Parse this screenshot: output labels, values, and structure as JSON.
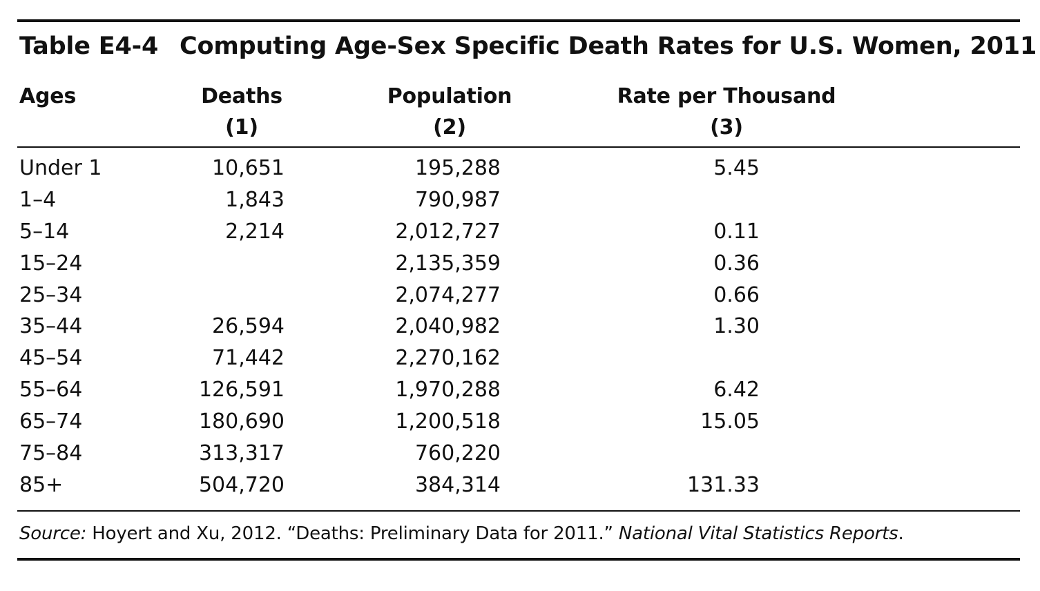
{
  "table": {
    "label": "Table E4-4",
    "title": "Computing Age-Sex Specific Death Rates for U.S. Women, 2011",
    "columns": {
      "ages": "Ages",
      "deaths": "Deaths",
      "deaths_num": "(1)",
      "population": "Population",
      "population_num": "(2)",
      "rate": "Rate per Thousand",
      "rate_num": "(3)"
    },
    "rows": [
      {
        "age": "Under 1",
        "deaths": "10,651",
        "population": "195,288",
        "rate": "5.45"
      },
      {
        "age": "1–4",
        "deaths": "1,843",
        "population": "790,987",
        "rate": ""
      },
      {
        "age": "5–14",
        "deaths": "2,214",
        "population": "2,012,727",
        "rate": "0.11"
      },
      {
        "age": "15–24",
        "deaths": "",
        "population": "2,135,359",
        "rate": "0.36"
      },
      {
        "age": "25–34",
        "deaths": "",
        "population": "2,074,277",
        "rate": "0.66"
      },
      {
        "age": "35–44",
        "deaths": "26,594",
        "population": "2,040,982",
        "rate": "1.30"
      },
      {
        "age": "45–54",
        "deaths": "71,442",
        "population": "2,270,162",
        "rate": ""
      },
      {
        "age": "55–64",
        "deaths": "126,591",
        "population": "1,970,288",
        "rate": "6.42"
      },
      {
        "age": "65–74",
        "deaths": "180,690",
        "population": "1,200,518",
        "rate": "15.05"
      },
      {
        "age": "75–84",
        "deaths": "313,317",
        "population": "760,220",
        "rate": ""
      },
      {
        "age": "85+",
        "deaths": "504,720",
        "population": "384,314",
        "rate": "131.33"
      }
    ],
    "source": {
      "prefix": "Source:",
      "text": " Hoyert and Xu, 2012. “Deaths: Preliminary Data for 2011.” ",
      "publication": "National Vital Statistics Reports",
      "suffix": "."
    }
  }
}
